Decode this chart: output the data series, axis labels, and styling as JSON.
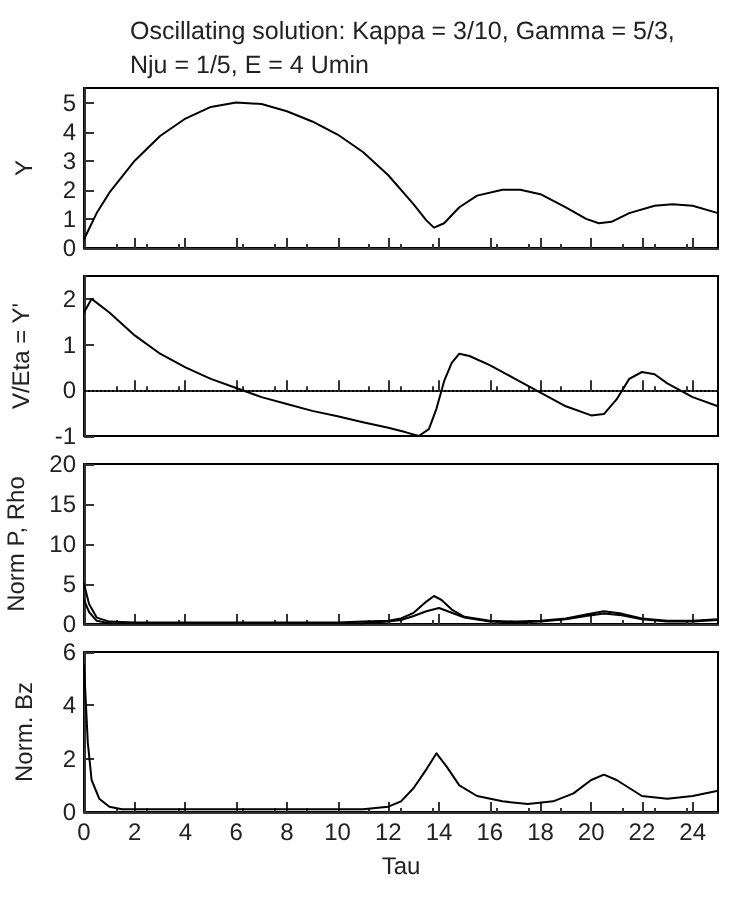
{
  "chart_data": [
    {
      "type": "line",
      "title": "Oscillating solution: Kappa = 3/10, Gamma = 5/3, Nju = 1/5, E = 4 Umin",
      "ylabel": "Y",
      "xlim": [
        0,
        25
      ],
      "xticks": [
        0,
        2,
        4,
        6,
        8,
        10,
        12,
        14,
        16,
        18,
        20,
        22,
        24
      ],
      "ylim": [
        0,
        5.5
      ],
      "yticks": [
        0,
        1,
        2,
        3,
        4,
        5
      ],
      "tick_labels": "y",
      "marker": "none",
      "line_style": "solid",
      "grid": false,
      "series": [
        {
          "color": "#000000",
          "x": [
            0,
            0.5,
            1,
            2,
            3,
            4,
            5,
            6,
            7,
            8,
            9,
            10,
            11,
            12,
            13,
            13.5,
            13.8,
            14.2,
            14.8,
            15.5,
            16.5,
            17.2,
            18,
            19,
            19.8,
            20.3,
            20.8,
            21.5,
            22.5,
            23.2,
            24,
            25
          ],
          "values": [
            0.3,
            1.2,
            1.9,
            3.0,
            3.85,
            4.45,
            4.85,
            5.0,
            4.95,
            4.7,
            4.35,
            3.9,
            3.3,
            2.5,
            1.5,
            0.95,
            0.7,
            0.85,
            1.4,
            1.8,
            2.0,
            2.0,
            1.85,
            1.4,
            1.0,
            0.85,
            0.9,
            1.2,
            1.45,
            1.5,
            1.45,
            1.2
          ]
        }
      ]
    },
    {
      "type": "line",
      "ylabel": "V/Eta = Y'",
      "xlim": [
        0,
        25
      ],
      "xticks": [
        0,
        2,
        4,
        6,
        8,
        10,
        12,
        14,
        16,
        18,
        20,
        22,
        24
      ],
      "ylim": [
        -1,
        2.5
      ],
      "yticks": [
        -1,
        0,
        1,
        2
      ],
      "tick_labels": "y",
      "marker": "none",
      "line_style": "solid",
      "grid": false,
      "ref_lines": [
        {
          "axis": "y",
          "value": 0,
          "line_style": "dotted",
          "color": "#000000"
        }
      ],
      "series": [
        {
          "color": "#000000",
          "x": [
            0,
            0.3,
            1,
            2,
            3,
            4,
            5,
            6,
            7,
            8,
            9,
            10,
            11,
            12,
            12.7,
            13.2,
            13.6,
            13.9,
            14.2,
            14.5,
            14.8,
            15.2,
            16,
            17,
            18,
            19,
            20,
            20.5,
            21,
            21.5,
            22,
            22.5,
            23,
            24,
            25
          ],
          "values": [
            1.7,
            2.0,
            1.7,
            1.2,
            0.8,
            0.5,
            0.25,
            0.05,
            -0.15,
            -0.3,
            -0.45,
            -0.57,
            -0.7,
            -0.82,
            -0.92,
            -1.0,
            -0.85,
            -0.4,
            0.2,
            0.6,
            0.8,
            0.75,
            0.55,
            0.25,
            -0.05,
            -0.35,
            -0.55,
            -0.52,
            -0.2,
            0.25,
            0.4,
            0.35,
            0.15,
            -0.15,
            -0.35
          ]
        }
      ]
    },
    {
      "type": "line",
      "ylabel": "Norm P, Rho",
      "xlim": [
        0,
        25
      ],
      "xticks": [
        0,
        2,
        4,
        6,
        8,
        10,
        12,
        14,
        16,
        18,
        20,
        22,
        24
      ],
      "ylim": [
        0,
        20
      ],
      "yticks": [
        0,
        5,
        10,
        15,
        20
      ],
      "tick_labels": "y",
      "marker": "none",
      "line_style": "solid",
      "grid": false,
      "series": [
        {
          "color": "#000000",
          "x": [
            0,
            0.2,
            0.5,
            1,
            2,
            4,
            6,
            8,
            10,
            11,
            12,
            12.5,
            13,
            13.5,
            13.8,
            14.1,
            14.5,
            15,
            16,
            17,
            18,
            19,
            19.8,
            20.5,
            21.2,
            22,
            23,
            24,
            25
          ],
          "values": [
            5,
            2.5,
            0.8,
            0.3,
            0.2,
            0.2,
            0.2,
            0.2,
            0.2,
            0.3,
            0.4,
            0.7,
            1.4,
            2.8,
            3.5,
            3.0,
            1.8,
            0.9,
            0.4,
            0.3,
            0.4,
            0.7,
            1.2,
            1.6,
            1.3,
            0.7,
            0.4,
            0.4,
            0.6
          ]
        },
        {
          "color": "#000000",
          "x": [
            0,
            0.2,
            0.5,
            1,
            2,
            4,
            6,
            8,
            10,
            11,
            12,
            12.5,
            13,
            13.5,
            14,
            14.5,
            15,
            16,
            17,
            18,
            19,
            19.8,
            20.5,
            21.2,
            22,
            23,
            24,
            25
          ],
          "values": [
            3,
            1.5,
            0.4,
            0.1,
            0.1,
            0.1,
            0.1,
            0.1,
            0.1,
            0.1,
            0.3,
            0.5,
            1.0,
            1.6,
            2.0,
            1.4,
            0.8,
            0.3,
            0.2,
            0.3,
            0.6,
            1.0,
            1.3,
            1.1,
            0.6,
            0.3,
            0.3,
            0.5
          ]
        }
      ]
    },
    {
      "type": "line",
      "xlabel": "Tau",
      "ylabel": "Norm. Bz",
      "xlim": [
        0,
        25
      ],
      "xticks": [
        0,
        2,
        4,
        6,
        8,
        10,
        12,
        14,
        16,
        18,
        20,
        22,
        24
      ],
      "ylim": [
        0,
        6
      ],
      "yticks": [
        0,
        2,
        4,
        6
      ],
      "marker": "none",
      "line_style": "solid",
      "grid": false,
      "series": [
        {
          "color": "#000000",
          "x": [
            0,
            0.15,
            0.3,
            0.6,
            1,
            1.5,
            2,
            4,
            6,
            8,
            10,
            11,
            12,
            12.5,
            13,
            13.5,
            13.9,
            14.3,
            14.8,
            15.5,
            16.5,
            17.5,
            18.5,
            19.3,
            20,
            20.5,
            21,
            21.5,
            22,
            23,
            24,
            25
          ],
          "values": [
            5.5,
            2.6,
            1.2,
            0.5,
            0.2,
            0.1,
            0.1,
            0.1,
            0.1,
            0.1,
            0.1,
            0.1,
            0.2,
            0.4,
            0.9,
            1.6,
            2.2,
            1.7,
            1.0,
            0.6,
            0.4,
            0.3,
            0.4,
            0.7,
            1.2,
            1.4,
            1.2,
            0.9,
            0.6,
            0.5,
            0.6,
            0.8
          ]
        }
      ]
    }
  ]
}
